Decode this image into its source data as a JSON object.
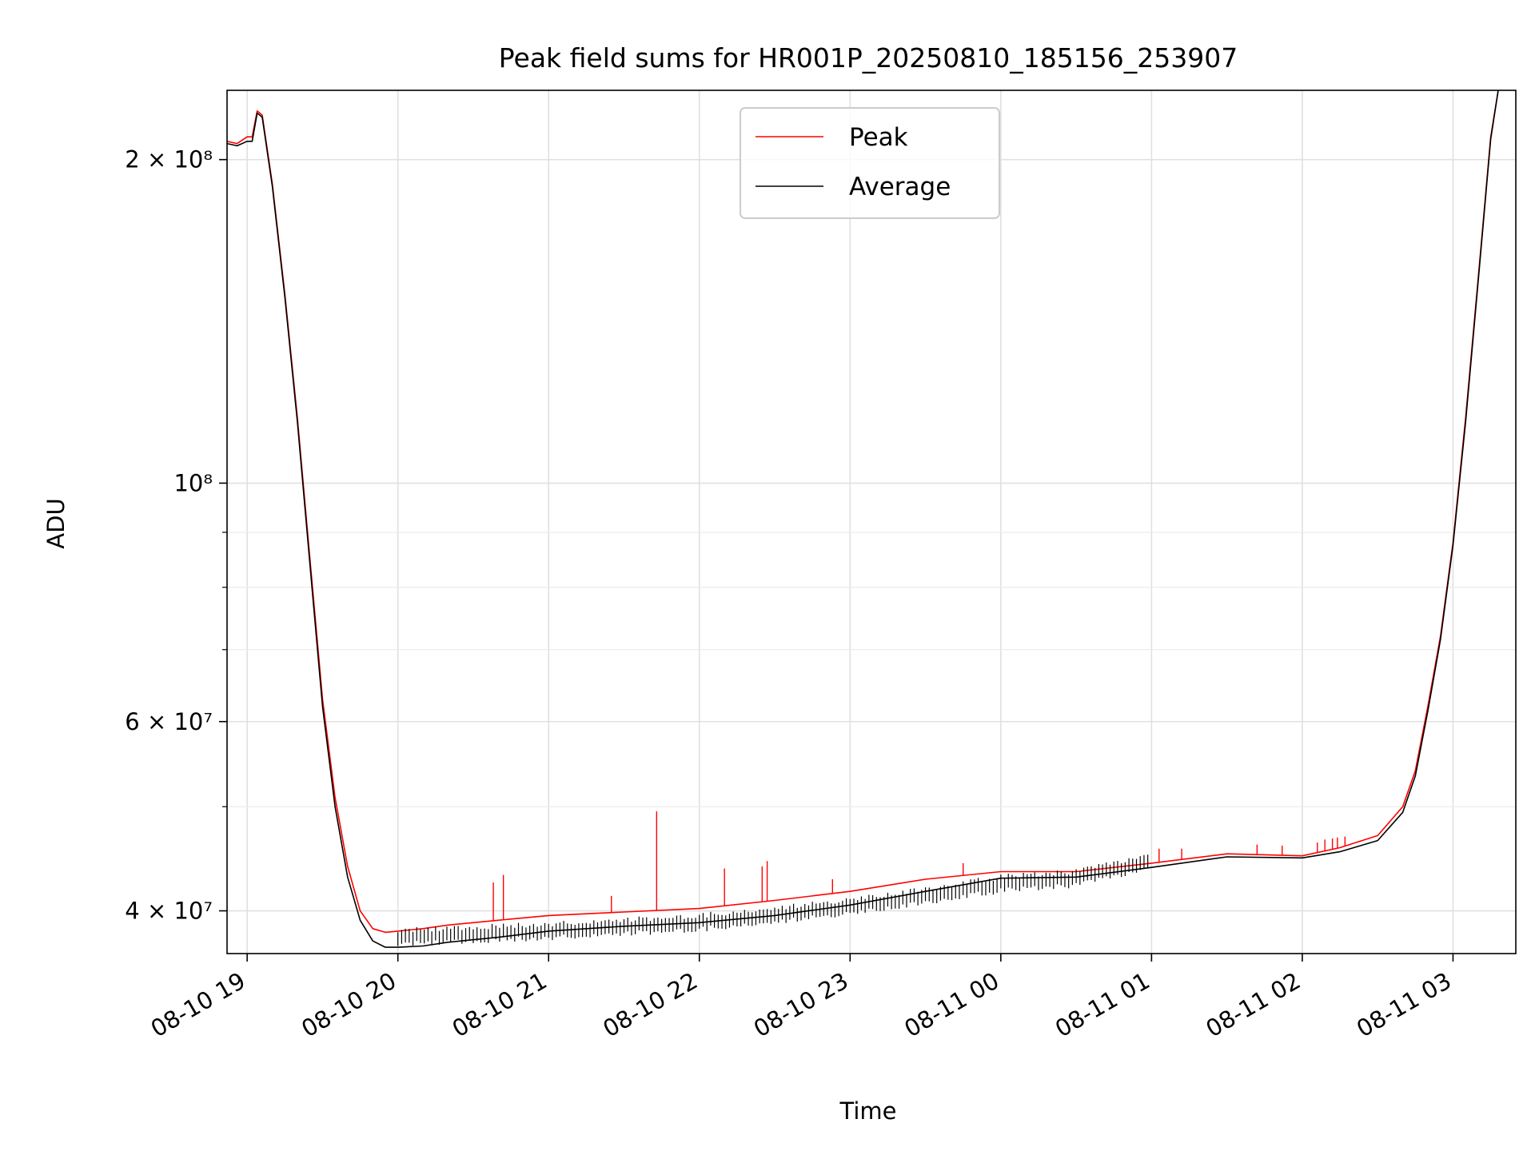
{
  "chart_data": {
    "type": "line",
    "title": "Peak field sums for HR001P_20250810_185156_253907",
    "xlabel": "Time",
    "ylabel": "ADU",
    "yscale": "log",
    "grid": true,
    "legend_placement": "top-center",
    "xlim": [
      "2025-08-10 18:52",
      "2025-08-11 03:25"
    ],
    "ylim": [
      36500000,
      232000000
    ],
    "x_ticks": [
      {
        "value": "2025-08-10 19:00",
        "label": "08-10 19"
      },
      {
        "value": "2025-08-10 20:00",
        "label": "08-10 20"
      },
      {
        "value": "2025-08-10 21:00",
        "label": "08-10 21"
      },
      {
        "value": "2025-08-10 22:00",
        "label": "08-10 22"
      },
      {
        "value": "2025-08-10 23:00",
        "label": "08-10 23"
      },
      {
        "value": "2025-08-11 00:00",
        "label": "08-11 00"
      },
      {
        "value": "2025-08-11 01:00",
        "label": "08-11 01"
      },
      {
        "value": "2025-08-11 02:00",
        "label": "08-11 02"
      },
      {
        "value": "2025-08-11 03:00",
        "label": "08-11 03"
      }
    ],
    "y_ticks": [
      {
        "value": 40000000,
        "label": "4 × 10⁷"
      },
      {
        "value": 60000000,
        "label": "6 × 10⁷"
      },
      {
        "value": 100000000,
        "label": "10⁸"
      },
      {
        "value": 200000000,
        "label": "2 × 10⁸"
      }
    ],
    "y_minor_ticks": [
      50000000,
      70000000,
      80000000,
      90000000
    ],
    "series": [
      {
        "name": "Peak",
        "color": "#ff0000",
        "x": [
          "2025-08-10 18:52",
          "2025-08-10 18:56",
          "2025-08-10 19:00",
          "2025-08-10 19:02",
          "2025-08-10 19:04",
          "2025-08-10 19:06",
          "2025-08-10 19:10",
          "2025-08-10 19:15",
          "2025-08-10 19:20",
          "2025-08-10 19:25",
          "2025-08-10 19:30",
          "2025-08-10 19:35",
          "2025-08-10 19:40",
          "2025-08-10 19:45",
          "2025-08-10 19:50",
          "2025-08-10 19:55",
          "2025-08-10 20:00",
          "2025-08-10 20:10",
          "2025-08-10 20:20",
          "2025-08-10 20:40",
          "2025-08-10 21:00",
          "2025-08-10 21:30",
          "2025-08-10 22:00",
          "2025-08-10 22:30",
          "2025-08-10 23:00",
          "2025-08-10 23:30",
          "2025-08-11 00:00",
          "2025-08-11 00:30",
          "2025-08-11 01:00",
          "2025-08-11 01:30",
          "2025-08-11 02:00",
          "2025-08-11 02:15",
          "2025-08-11 02:30",
          "2025-08-11 02:40",
          "2025-08-11 02:45",
          "2025-08-11 02:50",
          "2025-08-11 02:55",
          "2025-08-11 03:00",
          "2025-08-11 03:05",
          "2025-08-11 03:10",
          "2025-08-11 03:15",
          "2025-08-11 03:18"
        ],
        "values": [
          208000000,
          207000000,
          210000000,
          210000000,
          222000000,
          220000000,
          190000000,
          150000000,
          115000000,
          85000000,
          63000000,
          51000000,
          44000000,
          40000000,
          38500000,
          38200000,
          38300000,
          38500000,
          38800000,
          39200000,
          39600000,
          39900000,
          40200000,
          40900000,
          41700000,
          42800000,
          43500000,
          43500000,
          44300000,
          45200000,
          45000000,
          45800000,
          47000000,
          50000000,
          54000000,
          62000000,
          72000000,
          88000000,
          115000000,
          155000000,
          210000000,
          232000000
        ],
        "spikes": [
          {
            "x": "2025-08-10 20:38",
            "value": 42500000
          },
          {
            "x": "2025-08-10 20:42",
            "value": 43200000
          },
          {
            "x": "2025-08-10 21:25",
            "value": 41300000
          },
          {
            "x": "2025-08-10 21:43",
            "value": 49500000
          },
          {
            "x": "2025-08-10 22:10",
            "value": 43800000
          },
          {
            "x": "2025-08-10 22:25",
            "value": 44000000
          },
          {
            "x": "2025-08-10 22:27",
            "value": 44500000
          },
          {
            "x": "2025-08-10 22:53",
            "value": 42800000
          },
          {
            "x": "2025-08-10 23:45",
            "value": 44300000
          },
          {
            "x": "2025-08-11 01:03",
            "value": 45700000
          },
          {
            "x": "2025-08-11 01:12",
            "value": 45700000
          },
          {
            "x": "2025-08-11 01:42",
            "value": 46100000
          },
          {
            "x": "2025-08-11 01:52",
            "value": 46000000
          },
          {
            "x": "2025-08-11 02:06",
            "value": 46300000
          },
          {
            "x": "2025-08-11 02:09",
            "value": 46600000
          },
          {
            "x": "2025-08-11 02:12",
            "value": 46700000
          },
          {
            "x": "2025-08-11 02:14",
            "value": 46800000
          },
          {
            "x": "2025-08-11 02:17",
            "value": 46900000
          }
        ]
      },
      {
        "name": "Average",
        "color": "#000000",
        "x": [
          "2025-08-10 18:52",
          "2025-08-10 18:56",
          "2025-08-10 19:00",
          "2025-08-10 19:02",
          "2025-08-10 19:04",
          "2025-08-10 19:06",
          "2025-08-10 19:10",
          "2025-08-10 19:15",
          "2025-08-10 19:20",
          "2025-08-10 19:25",
          "2025-08-10 19:30",
          "2025-08-10 19:35",
          "2025-08-10 19:40",
          "2025-08-10 19:45",
          "2025-08-10 19:50",
          "2025-08-10 19:55",
          "2025-08-10 20:00",
          "2025-08-10 20:10",
          "2025-08-10 20:20",
          "2025-08-10 20:40",
          "2025-08-10 21:00",
          "2025-08-10 21:30",
          "2025-08-10 22:00",
          "2025-08-10 22:30",
          "2025-08-10 23:00",
          "2025-08-10 23:30",
          "2025-08-11 00:00",
          "2025-08-11 00:30",
          "2025-08-11 01:00",
          "2025-08-11 01:30",
          "2025-08-11 02:00",
          "2025-08-11 02:15",
          "2025-08-11 02:30",
          "2025-08-11 02:40",
          "2025-08-11 02:45",
          "2025-08-11 02:50",
          "2025-08-11 02:55",
          "2025-08-11 03:00",
          "2025-08-11 03:05",
          "2025-08-11 03:10",
          "2025-08-11 03:15",
          "2025-08-11 03:18"
        ],
        "values": [
          207000000,
          206000000,
          208000000,
          208000000,
          221000000,
          219000000,
          189000000,
          149000000,
          114000000,
          84000000,
          62000000,
          50000000,
          43000000,
          39200000,
          37500000,
          37000000,
          37000000,
          37100000,
          37400000,
          37800000,
          38300000,
          38700000,
          39000000,
          39600000,
          40500000,
          41700000,
          42900000,
          43000000,
          43900000,
          44900000,
          44800000,
          45400000,
          46500000,
          49400000,
          53400000,
          61400000,
          71500000,
          87500000,
          114000000,
          154000000,
          209000000,
          232000000
        ],
        "noise_band": [
          {
            "x": "2025-08-10 20:00",
            "low": 37000000
          },
          {
            "x": "2025-08-10 21:00",
            "low": 37500000
          },
          {
            "x": "2025-08-10 22:00",
            "low": 38200000
          },
          {
            "x": "2025-08-10 23:00",
            "low": 39500000
          },
          {
            "x": "2025-08-11 00:00",
            "low": 41500000
          },
          {
            "x": "2025-08-11 00:30",
            "low": 42000000
          },
          {
            "x": "2025-08-11 01:00",
            "low": 43500000
          }
        ]
      }
    ]
  }
}
